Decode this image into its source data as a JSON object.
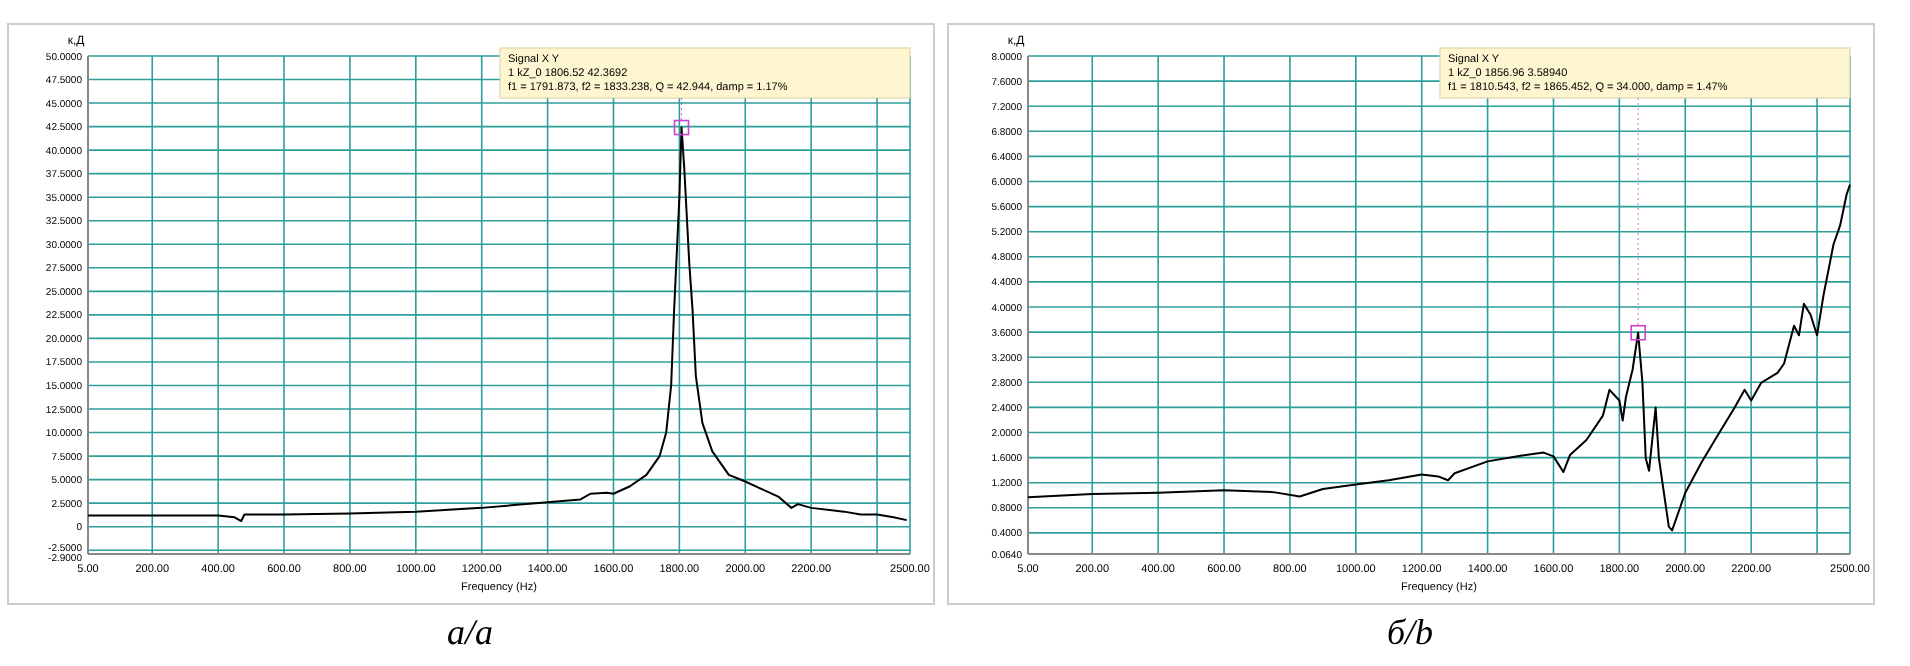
{
  "chart_data": [
    {
      "type": "line",
      "ylabel": "к,Д",
      "xlabel": "Frequency (Hz)",
      "grid": true,
      "marker": "none",
      "line_style": "solid",
      "xlim": [
        5,
        2500
      ],
      "ylim": [
        -2.9,
        50
      ],
      "xticks": [
        {
          "value": 5,
          "label": "5.00"
        },
        {
          "value": 200,
          "label": "200.00"
        },
        {
          "value": 400,
          "label": "400.00"
        },
        {
          "value": 600,
          "label": "600.00"
        },
        {
          "value": 800,
          "label": "800.00"
        },
        {
          "value": 1000,
          "label": "1000.00"
        },
        {
          "value": 1200,
          "label": "1200.00"
        },
        {
          "value": 1400,
          "label": "1400.00"
        },
        {
          "value": 1600,
          "label": "1600.00"
        },
        {
          "value": 1800,
          "label": "1800.00"
        },
        {
          "value": 2000,
          "label": "2000.00"
        },
        {
          "value": 2200,
          "label": "2200.00"
        },
        {
          "value": 2400,
          "label": null
        },
        {
          "value": 2500,
          "label": "2500.00"
        }
      ],
      "yticks": [
        {
          "value": -2.9,
          "label": "-2.9000"
        },
        {
          "value": -2.5,
          "label": "-2.5000"
        },
        0,
        {
          "value": 2.5,
          "label": "2.5000"
        },
        {
          "value": 5,
          "label": "5.0000"
        },
        {
          "value": 7.5,
          "label": "7.5000"
        },
        {
          "value": 10,
          "label": "10.0000"
        },
        {
          "value": 12.5,
          "label": "12.5000"
        },
        {
          "value": 15,
          "label": "15.0000"
        },
        {
          "value": 17.5,
          "label": "17.5000"
        },
        {
          "value": 20,
          "label": "20.0000"
        },
        {
          "value": 22.5,
          "label": "22.5000"
        },
        {
          "value": 25,
          "label": "25.0000"
        },
        {
          "value": 27.5,
          "label": "27.5000"
        },
        {
          "value": 30,
          "label": "30.0000"
        },
        {
          "value": 32.5,
          "label": "32.5000"
        },
        {
          "value": 35,
          "label": "35.0000"
        },
        {
          "value": 37.5,
          "label": "37.5000"
        },
        {
          "value": 40,
          "label": "40.0000"
        },
        {
          "value": 42.5,
          "label": "42.5000"
        },
        {
          "value": 45,
          "label": "45.0000"
        },
        {
          "value": 47.5,
          "label": "47.5000"
        },
        {
          "value": 50,
          "label": "50.0000"
        }
      ],
      "series": [
        {
          "color": "#000000",
          "x": [
            5,
            200,
            400,
            450,
            470,
            480,
            600,
            800,
            1000,
            1200,
            1400,
            1500,
            1530,
            1580,
            1600,
            1650,
            1700,
            1740,
            1760,
            1775,
            1784,
            1800,
            1806.5,
            1815,
            1830,
            1840,
            1850,
            1870,
            1900,
            1950,
            2000,
            2050,
            2100,
            2140,
            2160,
            2200,
            2300,
            2350,
            2400,
            2450,
            2490
          ],
          "values": [
            1.2,
            1.2,
            1.2,
            1.0,
            0.6,
            1.3,
            1.3,
            1.4,
            1.6,
            2.0,
            2.6,
            2.9,
            3.5,
            3.6,
            3.5,
            4.3,
            5.5,
            7.5,
            10,
            15,
            23,
            35,
            42.4,
            38,
            28,
            23,
            16,
            11,
            8,
            5.5,
            4.8,
            4.0,
            3.2,
            2.0,
            2.4,
            2.0,
            1.6,
            1.3,
            1.3,
            1.0,
            0.7
          ]
        }
      ],
      "annotations": [
        {
          "text": "Signal   X   Y\n1   kZ_0   1806.52   42.3692\nf1 = 1791.873, f2 = 1833.238, Q = 42.944, damp = 1.17%",
          "x": 1806.5,
          "y": 42.4
        },
        "а/a"
      ]
    },
    {
      "type": "line",
      "ylabel": "к,Д",
      "xlabel": "Frequency (Hz)",
      "grid": true,
      "marker": "none",
      "line_style": "solid",
      "xlim": [
        5,
        2500
      ],
      "ylim": [
        0.064,
        8
      ],
      "xticks": [
        {
          "value": 5,
          "label": "5.00"
        },
        {
          "value": 200,
          "label": "200.00"
        },
        {
          "value": 400,
          "label": "400.00"
        },
        {
          "value": 600,
          "label": "600.00"
        },
        {
          "value": 800,
          "label": "800.00"
        },
        {
          "value": 1000,
          "label": "1000.00"
        },
        {
          "value": 1200,
          "label": "1200.00"
        },
        {
          "value": 1400,
          "label": "1400.00"
        },
        {
          "value": 1600,
          "label": "1600.00"
        },
        {
          "value": 1800,
          "label": "1800.00"
        },
        {
          "value": 2000,
          "label": "2000.00"
        },
        {
          "value": 2200,
          "label": "2200.00"
        },
        {
          "value": 2400,
          "label": null
        },
        {
          "value": 2500,
          "label": "2500.00"
        }
      ],
      "yticks": [
        {
          "value": 0.064,
          "label": "0.0640"
        },
        {
          "value": 0.4,
          "label": "0.4000"
        },
        {
          "value": 0.8,
          "label": "0.8000"
        },
        {
          "value": 1.2,
          "label": "1.2000"
        },
        {
          "value": 1.6,
          "label": "1.6000"
        },
        {
          "value": 2,
          "label": "2.0000"
        },
        {
          "value": 2.4,
          "label": "2.4000"
        },
        {
          "value": 2.8,
          "label": "2.8000"
        },
        {
          "value": 3.2,
          "label": "3.2000"
        },
        {
          "value": 3.6,
          "label": "3.6000"
        },
        {
          "value": 4,
          "label": "4.0000"
        },
        {
          "value": 4.4,
          "label": "4.4000"
        },
        {
          "value": 4.8,
          "label": "4.8000"
        },
        {
          "value": 5.2,
          "label": "5.2000"
        },
        {
          "value": 5.6,
          "label": "5.6000"
        },
        {
          "value": 6,
          "label": "6.0000"
        },
        {
          "value": 6.4,
          "label": "6.4000"
        },
        {
          "value": 6.8,
          "label": "6.8000"
        },
        {
          "value": 7.2,
          "label": "7.2000"
        },
        {
          "value": 7.6,
          "label": "7.6000"
        },
        {
          "value": 8,
          "label": "8.0000"
        }
      ],
      "series": [
        {
          "color": "#000000",
          "x": [
            5,
            200,
            400,
            600,
            750,
            830,
            900,
            1000,
            1100,
            1200,
            1250,
            1280,
            1300,
            1400,
            1500,
            1570,
            1600,
            1630,
            1650,
            1700,
            1750,
            1770,
            1800,
            1810,
            1820,
            1840,
            1856.96,
            1870,
            1880,
            1890,
            1910,
            1920,
            1950,
            1960,
            2000,
            2050,
            2100,
            2150,
            2180,
            2200,
            2230,
            2280,
            2300,
            2330,
            2345,
            2360,
            2380,
            2400,
            2420,
            2450,
            2470,
            2490,
            2500
          ],
          "values": [
            0.97,
            1.02,
            1.04,
            1.08,
            1.05,
            0.98,
            1.1,
            1.17,
            1.24,
            1.33,
            1.3,
            1.24,
            1.35,
            1.54,
            1.63,
            1.68,
            1.62,
            1.37,
            1.64,
            1.88,
            2.27,
            2.68,
            2.51,
            2.19,
            2.57,
            3.0,
            3.59,
            2.79,
            1.59,
            1.39,
            2.4,
            1.59,
            0.5,
            0.44,
            1.04,
            1.53,
            1.97,
            2.4,
            2.68,
            2.51,
            2.79,
            2.95,
            3.1,
            3.7,
            3.55,
            4.05,
            3.88,
            3.55,
            4.2,
            5.0,
            5.3,
            5.8,
            5.95
          ]
        }
      ],
      "annotations": [
        {
          "text": "Signal   X   Y\n1   kZ_0   1856.96   3.58940\nf1 = 1810.543, f2 = 1865.452, Q = 34.000, damp = 1.47%",
          "x": 1856.96,
          "y": 3.59
        },
        "б/b"
      ]
    }
  ]
}
